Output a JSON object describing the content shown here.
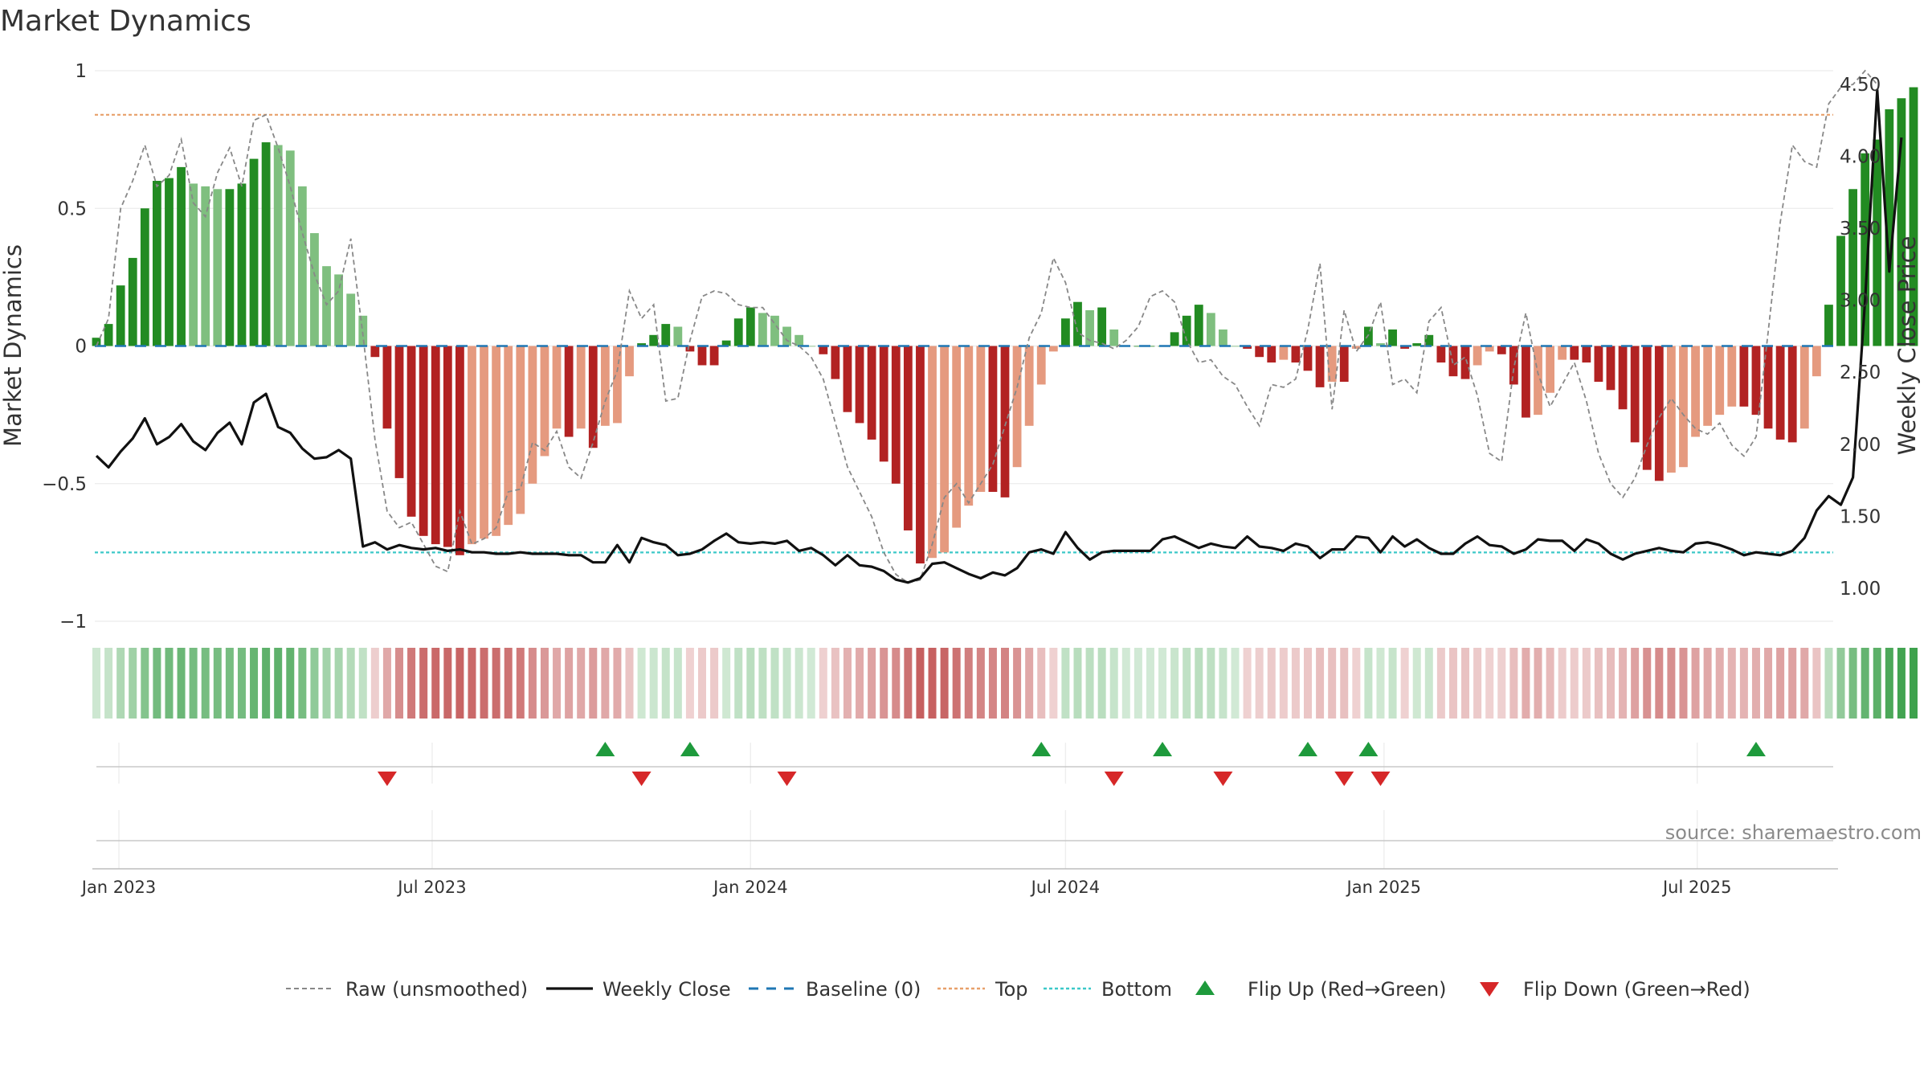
{
  "title": "Market Dynamics",
  "source": "source: sharemaestro.com",
  "colors": {
    "green_dark": "#228b22",
    "green_light": "#7fbf7f",
    "red_dark": "#b22222",
    "red_light": "#e59a7f",
    "raw_line": "#888888",
    "close_line": "#111111",
    "baseline": "#1f77b4",
    "top": "#e8a06a",
    "bottom": "#3cc8c8",
    "flip_up": "#1e9a3c",
    "flip_down": "#d62728"
  },
  "chart_data": {
    "type": "bar",
    "title": "Market Dynamics",
    "ylabel_left": "Market Dynamics",
    "ylabel_right": "Weekly Close Price",
    "ylim_left": [
      -1,
      1
    ],
    "ylim_right": [
      0.75,
      4.6
    ],
    "yticks_left": [
      "1",
      "0.5",
      "0",
      "−0.5",
      "−1"
    ],
    "ytick_values_left": [
      1,
      0.5,
      0,
      -0.5,
      -1
    ],
    "yticks_right": [
      "4.50",
      "4.00",
      "3.50",
      "3.00",
      "2.50",
      "2.00",
      "1.50",
      "1.00"
    ],
    "ytick_values_right": [
      4.5,
      4.0,
      3.5,
      3.0,
      2.5,
      2.0,
      1.5,
      1.0
    ],
    "x_start": "2022-12-19",
    "x_step_days": 7,
    "x_ticks": [
      {
        "date": "2023-01-01",
        "label": "Jan 2023"
      },
      {
        "date": "2023-07-01",
        "label": "Jul 2023"
      },
      {
        "date": "2024-01-01",
        "label": "Jan 2024"
      },
      {
        "date": "2024-07-01",
        "label": "Jul 2024"
      },
      {
        "date": "2025-01-01",
        "label": "Jan 2025"
      },
      {
        "date": "2025-07-01",
        "label": "Jul 2025"
      }
    ],
    "top_level": 0.84,
    "bottom_level": -0.75,
    "baseline_level": 0,
    "series": [
      {
        "name": "Market Dynamics",
        "values": [
          0.03,
          0.08,
          0.22,
          0.32,
          0.5,
          0.6,
          0.61,
          0.65,
          0.59,
          0.58,
          0.57,
          0.57,
          0.59,
          0.68,
          0.74,
          0.73,
          0.71,
          0.58,
          0.41,
          0.29,
          0.26,
          0.19,
          0.11,
          -0.04,
          -0.3,
          -0.48,
          -0.62,
          -0.69,
          -0.72,
          -0.73,
          -0.76,
          -0.72,
          -0.7,
          -0.69,
          -0.65,
          -0.61,
          -0.5,
          -0.4,
          -0.3,
          -0.33,
          -0.3,
          -0.37,
          -0.29,
          -0.28,
          -0.11,
          0.01,
          0.04,
          0.08,
          0.07,
          -0.02,
          -0.07,
          -0.07,
          0.02,
          0.1,
          0.14,
          0.12,
          0.11,
          0.07,
          0.04,
          0.0,
          -0.03,
          -0.12,
          -0.24,
          -0.28,
          -0.34,
          -0.42,
          -0.5,
          -0.67,
          -0.79,
          -0.77,
          -0.75,
          -0.66,
          -0.58,
          -0.53,
          -0.53,
          -0.55,
          -0.44,
          -0.29,
          -0.14,
          -0.02,
          0.1,
          0.16,
          0.13,
          0.14,
          0.06,
          0.0,
          0.0,
          0.0,
          0.0,
          0.05,
          0.11,
          0.15,
          0.12,
          0.06,
          0.0,
          -0.01,
          -0.04,
          -0.06,
          -0.05,
          -0.06,
          -0.09,
          -0.15,
          -0.13,
          -0.13,
          -0.01,
          0.07,
          0.01,
          0.06,
          -0.01,
          0.01,
          0.04,
          -0.06,
          -0.11,
          -0.12,
          -0.07,
          -0.02,
          -0.03,
          -0.14,
          -0.26,
          -0.25,
          -0.17,
          -0.05,
          -0.05,
          -0.06,
          -0.13,
          -0.16,
          -0.23,
          -0.35,
          -0.45,
          -0.49,
          -0.46,
          -0.44,
          -0.33,
          -0.29,
          -0.25,
          -0.22,
          -0.22,
          -0.25,
          -0.3,
          -0.34,
          -0.35,
          -0.3,
          -0.11,
          0.15,
          0.4,
          0.57,
          0.7,
          0.75,
          0.86,
          0.9,
          0.94
        ]
      },
      {
        "name": "Raw (unsmoothed)",
        "values": [
          0.0,
          0.1,
          0.5,
          0.6,
          0.73,
          0.58,
          0.62,
          0.75,
          0.52,
          0.47,
          0.63,
          0.72,
          0.58,
          0.82,
          0.84,
          0.72,
          0.58,
          0.41,
          0.26,
          0.15,
          0.2,
          0.39,
          0.04,
          -0.34,
          -0.6,
          -0.66,
          -0.64,
          -0.72,
          -0.8,
          -0.82,
          -0.6,
          -0.72,
          -0.7,
          -0.66,
          -0.53,
          -0.52,
          -0.35,
          -0.38,
          -0.31,
          -0.44,
          -0.48,
          -0.35,
          -0.2,
          -0.09,
          0.2,
          0.1,
          0.15,
          -0.2,
          -0.19,
          0.02,
          0.18,
          0.2,
          0.19,
          0.15,
          0.14,
          0.14,
          0.08,
          0.02,
          0.0,
          -0.04,
          -0.12,
          -0.28,
          -0.44,
          -0.53,
          -0.62,
          -0.75,
          -0.83,
          -0.86,
          -0.85,
          -0.72,
          -0.55,
          -0.5,
          -0.57,
          -0.5,
          -0.43,
          -0.29,
          -0.15,
          0.03,
          0.12,
          0.32,
          0.23,
          0.05,
          0.02,
          0.01,
          -0.01,
          0.02,
          0.07,
          0.18,
          0.2,
          0.16,
          0.02,
          -0.06,
          -0.05,
          -0.11,
          -0.14,
          -0.22,
          -0.29,
          -0.14,
          -0.15,
          -0.12,
          0.06,
          0.3,
          -0.23,
          0.13,
          -0.02,
          0.04,
          0.16,
          -0.14,
          -0.12,
          -0.17,
          0.09,
          0.14,
          -0.07,
          -0.04,
          -0.18,
          -0.39,
          -0.42,
          -0.08,
          0.12,
          -0.1,
          -0.22,
          -0.14,
          -0.06,
          -0.2,
          -0.39,
          -0.5,
          -0.55,
          -0.48,
          -0.36,
          -0.26,
          -0.19,
          -0.25,
          -0.3,
          -0.32,
          -0.28,
          -0.36,
          -0.4,
          -0.33,
          0.05,
          0.45,
          0.73,
          0.67,
          0.65,
          0.88,
          0.94,
          0.95,
          1.0,
          0.95
        ]
      },
      {
        "name": "Weekly Close",
        "axis": "right",
        "values": [
          1.92,
          1.84,
          1.95,
          2.04,
          2.18,
          2.0,
          2.05,
          2.14,
          2.02,
          1.96,
          2.08,
          2.15,
          2.0,
          2.29,
          2.35,
          2.12,
          2.08,
          1.97,
          1.9,
          1.91,
          1.96,
          1.9,
          1.29,
          1.32,
          1.27,
          1.3,
          1.28,
          1.27,
          1.28,
          1.26,
          1.27,
          1.25,
          1.25,
          1.24,
          1.24,
          1.25,
          1.24,
          1.24,
          1.24,
          1.23,
          1.23,
          1.18,
          1.18,
          1.3,
          1.18,
          1.35,
          1.32,
          1.3,
          1.23,
          1.24,
          1.27,
          1.33,
          1.38,
          1.32,
          1.31,
          1.32,
          1.31,
          1.33,
          1.26,
          1.28,
          1.23,
          1.16,
          1.23,
          1.16,
          1.15,
          1.12,
          1.06,
          1.04,
          1.07,
          1.17,
          1.18,
          1.14,
          1.1,
          1.07,
          1.11,
          1.09,
          1.14,
          1.25,
          1.27,
          1.24,
          1.39,
          1.28,
          1.2,
          1.25,
          1.26,
          1.26,
          1.26,
          1.26,
          1.34,
          1.36,
          1.32,
          1.28,
          1.31,
          1.29,
          1.28,
          1.36,
          1.29,
          1.28,
          1.26,
          1.31,
          1.29,
          1.21,
          1.27,
          1.27,
          1.36,
          1.35,
          1.25,
          1.36,
          1.29,
          1.34,
          1.28,
          1.24,
          1.24,
          1.31,
          1.36,
          1.3,
          1.29,
          1.24,
          1.27,
          1.34,
          1.33,
          1.33,
          1.26,
          1.34,
          1.31,
          1.24,
          1.2,
          1.24,
          1.26,
          1.28,
          1.26,
          1.25,
          1.31,
          1.32,
          1.3,
          1.27,
          1.23,
          1.25,
          1.24,
          1.23,
          1.26,
          1.35,
          1.54,
          1.64,
          1.58,
          1.77,
          3.0,
          4.46,
          3.2,
          4.13
        ]
      }
    ],
    "flip_up_dates": [
      "2023-10-09",
      "2023-11-27",
      "2024-06-17",
      "2024-08-26",
      "2024-11-18",
      "2024-12-23",
      "2025-08-04"
    ],
    "flip_down_dates": [
      "2023-06-05",
      "2023-10-30",
      "2024-01-22",
      "2024-07-29",
      "2024-09-30",
      "2024-12-09",
      "2024-12-30"
    ]
  },
  "legend": [
    {
      "label": "Raw (unsmoothed)",
      "style": "dashed-gray"
    },
    {
      "label": "Weekly Close",
      "style": "solid-black"
    },
    {
      "label": "Baseline (0)",
      "style": "dashed-blue"
    },
    {
      "label": "Top",
      "style": "dotted-orange"
    },
    {
      "label": "Bottom",
      "style": "dotted-cyan"
    },
    {
      "label": "Flip Up (Red→Green)",
      "style": "triangle-up-green"
    },
    {
      "label": "Flip Down (Green→Red)",
      "style": "triangle-down-red"
    }
  ]
}
